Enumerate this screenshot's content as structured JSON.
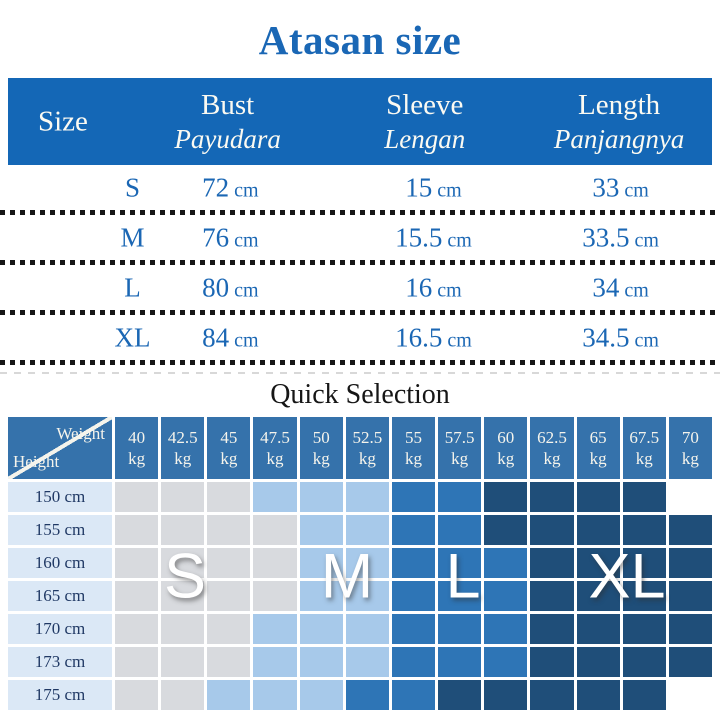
{
  "title": "Atasan size",
  "size_table": {
    "unit": "cm",
    "columns": {
      "size": {
        "label": "Size"
      },
      "bust": {
        "label": "Bust",
        "sublabel": "Payudara"
      },
      "sleeve": {
        "label": "Sleeve",
        "sublabel": "Lengan"
      },
      "length": {
        "label": "Length",
        "sublabel": "Panjangnya"
      }
    },
    "rows": [
      {
        "size": "S",
        "bust": "72",
        "sleeve": "15",
        "length": "33"
      },
      {
        "size": "M",
        "bust": "76",
        "sleeve": "15.5",
        "length": "33.5"
      },
      {
        "size": "L",
        "bust": "80",
        "sleeve": "16",
        "length": "34"
      },
      {
        "size": "XL",
        "bust": "84",
        "sleeve": "16.5",
        "length": "34.5"
      }
    ]
  },
  "quick_selection": {
    "heading": "Quick Selection",
    "corner": {
      "weight": "Weight",
      "height": "Height"
    },
    "weight_unit": "kg",
    "weights": [
      "40",
      "42.5",
      "45",
      "47.5",
      "50",
      "52.5",
      "55",
      "57.5",
      "60",
      "62.5",
      "65",
      "67.5",
      "70"
    ],
    "heights": [
      "150 cm",
      "155 cm",
      "160 cm",
      "165 cm",
      "170 cm",
      "173 cm",
      "175 cm"
    ],
    "size_colors": {
      "S": "#d8dade",
      "M": "#a7c9ea",
      "L": "#2e75b6",
      "XL": "#1f4e79"
    },
    "matrix": [
      [
        "S",
        "S",
        "S",
        "M",
        "M",
        "M",
        "L",
        "L",
        "XL",
        "XL",
        "XL",
        "XL",
        ""
      ],
      [
        "S",
        "S",
        "S",
        "S",
        "M",
        "M",
        "L",
        "L",
        "XL",
        "XL",
        "XL",
        "XL",
        "XL"
      ],
      [
        "S",
        "S",
        "S",
        "S",
        "M",
        "M",
        "L",
        "L",
        "L",
        "XL",
        "XL",
        "XL",
        "XL"
      ],
      [
        "S",
        "S",
        "S",
        "S",
        "M",
        "M",
        "L",
        "L",
        "L",
        "XL",
        "XL",
        "XL",
        "XL"
      ],
      [
        "S",
        "S",
        "S",
        "M",
        "M",
        "M",
        "L",
        "L",
        "L",
        "XL",
        "XL",
        "XL",
        "XL"
      ],
      [
        "S",
        "S",
        "S",
        "M",
        "M",
        "M",
        "L",
        "L",
        "L",
        "XL",
        "XL",
        "XL",
        "XL"
      ],
      [
        "S",
        "S",
        "M",
        "M",
        "M",
        "L",
        "L",
        "XL",
        "XL",
        "XL",
        "XL",
        "XL",
        ""
      ]
    ],
    "overlay_letters": [
      "S",
      "M",
      "L",
      "XL"
    ]
  },
  "colors": {
    "title_blue": "#1a67b5",
    "header_blue": "#1467b6",
    "body_text_blue": "#1b67b4",
    "grid_header_blue": "#3572ab",
    "label_bg": "#dbe8f6",
    "label_text": "#1f3864",
    "dotted_line": "#161616"
  }
}
